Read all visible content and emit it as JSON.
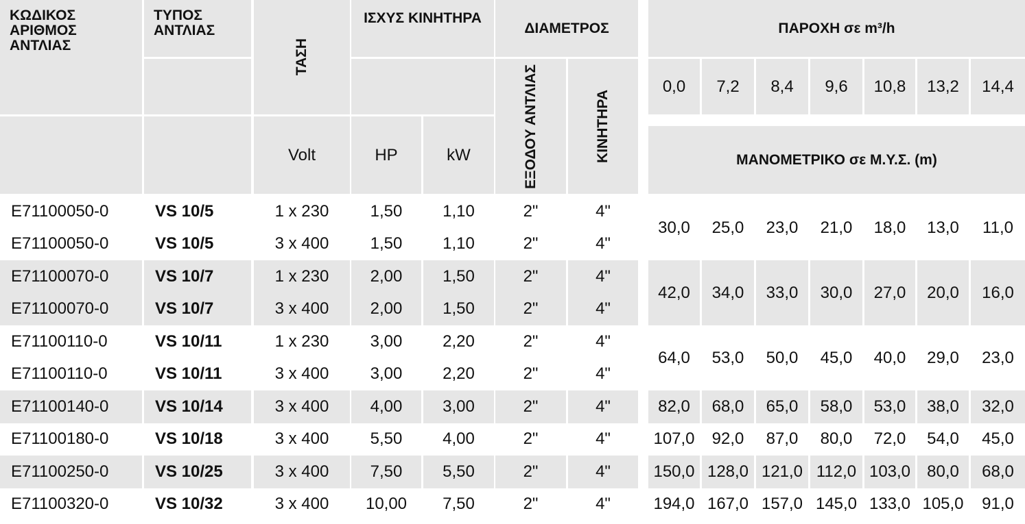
{
  "header": {
    "code": "ΚΩΔΙΚΟΣ\nΑΡΙΘΜΟΣ\nΑΝΤΛΙΑΣ",
    "type": "ΤΥΠΟΣ\nΑΝΤΛΙΑΣ",
    "voltage": "ΤΑΣΗ",
    "power": "ΙΣΧΥΣ ΚΙΝΗΤΗΡΑ",
    "diameter": "ΔΙΑΜΕΤΡΟΣ",
    "outlet": "ΕΞΟΔΟΥ ΑΝΤΛΙΑΣ",
    "motor": "ΚΙΝΗΤΗΡΑ",
    "flow": "ΠΑΡΟΧΗ σε m³/h",
    "volt": "Volt",
    "hp": "HP",
    "kw": "kW",
    "head": "ΜΑΝΟΜΕΤΡΙΚΟ σε Μ.Υ.Σ. (m)",
    "flows": [
      "0,0",
      "7,2",
      "8,4",
      "9,6",
      "10,8",
      "13,2",
      "14,4"
    ]
  },
  "groups": [
    {
      "rows": [
        [
          "E71100050-0",
          "VS 10/5",
          "1 x 230",
          "1,50",
          "1,10",
          "2\"",
          "4\""
        ],
        [
          "E71100050-0",
          "VS 10/5",
          "3 x 400",
          "1,50",
          "1,10",
          "2\"",
          "4\""
        ]
      ],
      "head": [
        "30,0",
        "25,0",
        "23,0",
        "21,0",
        "18,0",
        "13,0",
        "11,0"
      ]
    },
    {
      "rows": [
        [
          "E71100070-0",
          "VS 10/7",
          "1 x 230",
          "2,00",
          "1,50",
          "2\"",
          "4\""
        ],
        [
          "E71100070-0",
          "VS 10/7",
          "3 x 400",
          "2,00",
          "1,50",
          "2\"",
          "4\""
        ]
      ],
      "head": [
        "42,0",
        "34,0",
        "33,0",
        "30,0",
        "27,0",
        "20,0",
        "16,0"
      ]
    },
    {
      "rows": [
        [
          "E71100110-0",
          "VS 10/11",
          "1 x 230",
          "3,00",
          "2,20",
          "2\"",
          "4\""
        ],
        [
          "E71100110-0",
          "VS 10/11",
          "3 x 400",
          "3,00",
          "2,20",
          "2\"",
          "4\""
        ]
      ],
      "head": [
        "64,0",
        "53,0",
        "50,0",
        "45,0",
        "40,0",
        "29,0",
        "23,0"
      ]
    },
    {
      "rows": [
        [
          "E71100140-0",
          "VS 10/14",
          "3 x 400",
          "4,00",
          "3,00",
          "2\"",
          "4\""
        ]
      ],
      "head": [
        "82,0",
        "68,0",
        "65,0",
        "58,0",
        "53,0",
        "38,0",
        "32,0"
      ]
    },
    {
      "rows": [
        [
          "E71100180-0",
          "VS 10/18",
          "3 x 400",
          "5,50",
          "4,00",
          "2\"",
          "4\""
        ]
      ],
      "head": [
        "107,0",
        "92,0",
        "87,0",
        "80,0",
        "72,0",
        "54,0",
        "45,0"
      ]
    },
    {
      "rows": [
        [
          "E71100250-0",
          "VS 10/25",
          "3 x 400",
          "7,50",
          "5,50",
          "2\"",
          "4\""
        ]
      ],
      "head": [
        "150,0",
        "128,0",
        "121,0",
        "112,0",
        "103,0",
        "80,0",
        "68,0"
      ]
    },
    {
      "rows": [
        [
          "E71100320-0",
          "VS 10/32",
          "3 x 400",
          "10,00",
          "7,50",
          "2\"",
          "4\""
        ]
      ],
      "head": [
        "194,0",
        "167,0",
        "157,0",
        "145,0",
        "133,0",
        "105,0",
        "91,0"
      ]
    }
  ]
}
